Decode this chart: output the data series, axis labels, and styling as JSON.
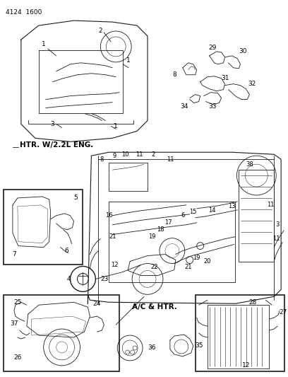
{
  "bg_color": "#ffffff",
  "line_color": "#1a1a1a",
  "fig_width": 4.08,
  "fig_height": 5.33,
  "dpi": 100,
  "header": "4124  1600",
  "label_htr": "HTR. W/2.2L ENG.",
  "label_ac": "A/C & HTR.",
  "gray": "#888888",
  "lightgray": "#aaaaaa",
  "darkgray": "#555555"
}
